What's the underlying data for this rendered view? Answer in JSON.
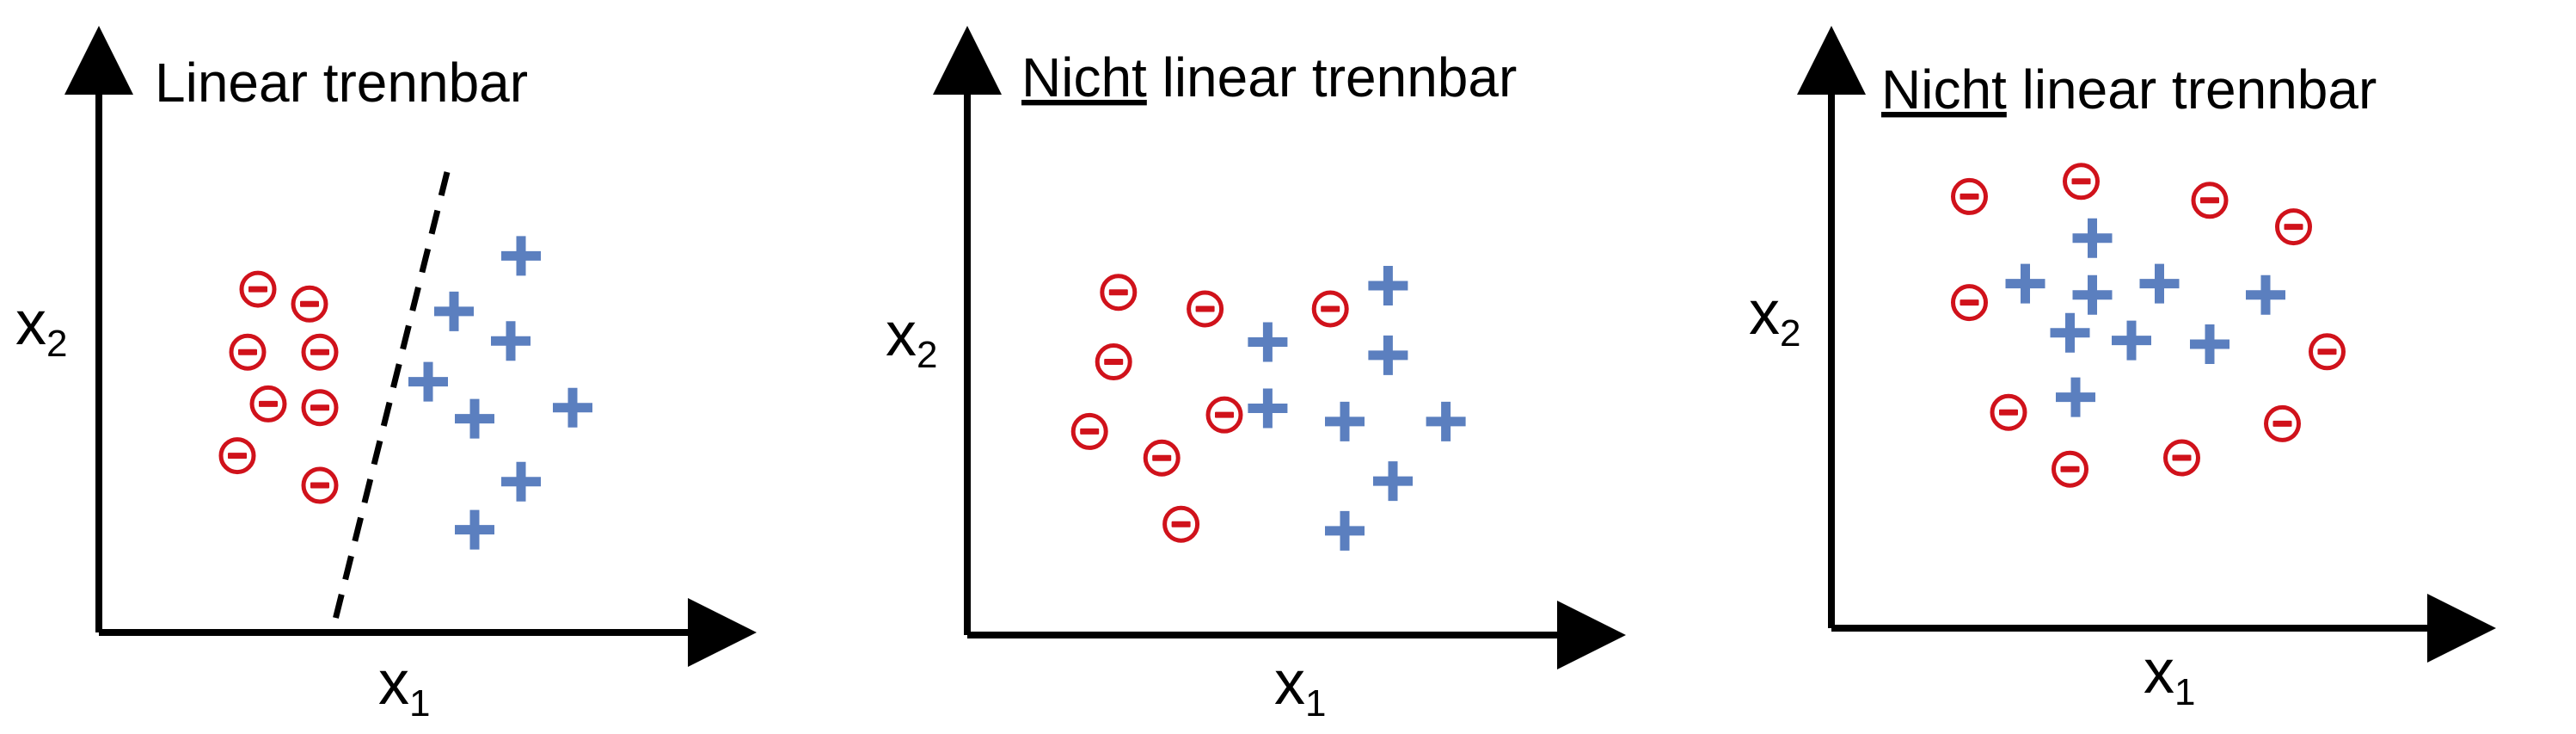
{
  "diagrams": [
    {
      "title_underlined": "",
      "title_rest": "Linear trennbar",
      "xlabel_main": "x",
      "xlabel_sub": "1",
      "ylabel_main": "x",
      "ylabel_sub": "2",
      "has_separator": true,
      "negative_points": [
        [
          0.2,
          0.27
        ],
        [
          0.3,
          0.31
        ],
        [
          0.18,
          0.44
        ],
        [
          0.32,
          0.44
        ],
        [
          0.22,
          0.58
        ],
        [
          0.32,
          0.59
        ],
        [
          0.16,
          0.72
        ],
        [
          0.32,
          0.8
        ]
      ],
      "positive_points": [
        [
          0.71,
          0.18
        ],
        [
          0.58,
          0.33
        ],
        [
          0.69,
          0.41
        ],
        [
          0.53,
          0.52
        ],
        [
          0.62,
          0.62
        ],
        [
          0.81,
          0.59
        ],
        [
          0.71,
          0.79
        ],
        [
          0.62,
          0.92
        ]
      ]
    },
    {
      "title_underlined": "Nicht",
      "title_rest": " linear trennbar",
      "xlabel_main": "x",
      "xlabel_sub": "1",
      "ylabel_main": "x",
      "ylabel_sub": "2",
      "has_separator": false,
      "negative_points": [
        [
          0.18,
          0.22
        ],
        [
          0.36,
          0.27
        ],
        [
          0.62,
          0.27
        ],
        [
          0.17,
          0.43
        ],
        [
          0.4,
          0.59
        ],
        [
          0.12,
          0.64
        ],
        [
          0.27,
          0.72
        ],
        [
          0.31,
          0.92
        ]
      ],
      "positive_points": [
        [
          0.74,
          0.2
        ],
        [
          0.49,
          0.37
        ],
        [
          0.74,
          0.41
        ],
        [
          0.49,
          0.57
        ],
        [
          0.65,
          0.61
        ],
        [
          0.86,
          0.61
        ],
        [
          0.75,
          0.79
        ],
        [
          0.65,
          0.94
        ]
      ]
    },
    {
      "title_underlined": "Nicht",
      "title_rest": " linear trennbar",
      "xlabel_main": "x",
      "xlabel_sub": "1",
      "ylabel_main": "x",
      "ylabel_sub": "2",
      "has_separator": false,
      "negative_points": [
        [
          0.17,
          0.11
        ],
        [
          0.37,
          0.07
        ],
        [
          0.6,
          0.12
        ],
        [
          0.75,
          0.19
        ],
        [
          0.17,
          0.39
        ],
        [
          0.81,
          0.52
        ],
        [
          0.24,
          0.68
        ],
        [
          0.73,
          0.71
        ],
        [
          0.35,
          0.83
        ],
        [
          0.55,
          0.8
        ]
      ],
      "positive_points": [
        [
          0.39,
          0.22
        ],
        [
          0.27,
          0.34
        ],
        [
          0.39,
          0.37
        ],
        [
          0.51,
          0.34
        ],
        [
          0.7,
          0.37
        ],
        [
          0.35,
          0.47
        ],
        [
          0.46,
          0.49
        ],
        [
          0.6,
          0.5
        ],
        [
          0.36,
          0.64
        ]
      ]
    }
  ],
  "colors": {
    "negative": "#d0121b",
    "positive": "#5b7fbf",
    "axis": "#000000"
  }
}
